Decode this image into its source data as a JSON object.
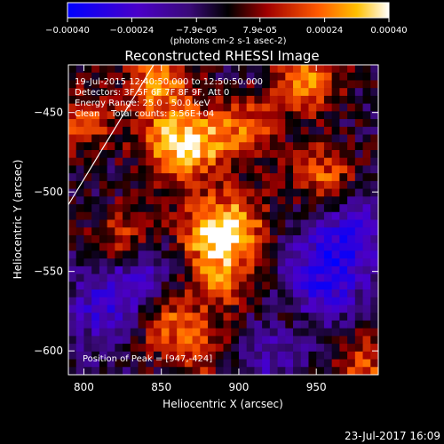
{
  "chart_data": {
    "type": "heatmap",
    "title": "Reconstructed RHESSI Image",
    "xlabel": "Heliocentric X (arcsec)",
    "ylabel": "Heliocentric Y (arcsec)",
    "xlim": [
      790,
      990
    ],
    "ylim": [
      -615,
      -420
    ],
    "x_ticks": [
      "800",
      "850",
      "900",
      "950"
    ],
    "y_ticks": [
      "-450",
      "-500",
      "-550",
      "-600"
    ],
    "colorbar": {
      "range": [
        -0.0004,
        0.0004
      ],
      "tick_labels": [
        "-0.00040",
        "-0.00024",
        "-7.9e-05",
        "7.9e-05",
        "0.00024",
        "0.00040"
      ],
      "unit_label": "(photons cm-2 s-1 asec-2)"
    },
    "annotations": {
      "time_range": "19-Jul-2015 12:40:50.000 to 12:50:50.000",
      "detectors": "Detectors: 3F 5F 6F 7F 8F 9F, Att 0",
      "energy_range": "Energy Range: 25.0 - 50.0 keV",
      "method_counts": "Clean    Total counts: 3.56E+04",
      "peak": "Position of Peak = [947,-424]"
    },
    "hotspots": [
      {
        "x": 848,
        "y": -430,
        "value": 0.0004
      },
      {
        "x": 855,
        "y": -470,
        "value": 0.00038
      },
      {
        "x": 875,
        "y": -470,
        "value": 0.00034
      },
      {
        "x": 825,
        "y": -530,
        "value": 0.0003
      },
      {
        "x": 880,
        "y": -525,
        "value": 0.0004
      },
      {
        "x": 900,
        "y": -520,
        "value": 0.00034
      },
      {
        "x": 905,
        "y": -460,
        "value": 0.0003
      },
      {
        "x": 955,
        "y": -490,
        "value": 0.00032
      },
      {
        "x": 945,
        "y": -430,
        "value": 0.0004
      },
      {
        "x": 890,
        "y": -555,
        "value": 0.00034
      },
      {
        "x": 850,
        "y": -580,
        "value": 0.00036
      },
      {
        "x": 875,
        "y": -600,
        "value": 0.00026
      },
      {
        "x": 935,
        "y": -580,
        "value": 0.00024
      },
      {
        "x": 800,
        "y": -455,
        "value": 0.00028
      },
      {
        "x": 980,
        "y": -610,
        "value": 0.0003
      }
    ],
    "coldspots": [
      {
        "x": 960,
        "y": -545,
        "value": -0.0002
      },
      {
        "x": 945,
        "y": -570,
        "value": -0.00018
      },
      {
        "x": 835,
        "y": -555,
        "value": -0.0002
      },
      {
        "x": 815,
        "y": -575,
        "value": -0.00018
      },
      {
        "x": 920,
        "y": -600,
        "value": -0.00016
      },
      {
        "x": 975,
        "y": -525,
        "value": -0.00016
      }
    ],
    "limb": [
      [
        790,
        -508
      ],
      [
        845,
        -420
      ]
    ]
  },
  "timestamp": "23-Jul-2017 16:09"
}
